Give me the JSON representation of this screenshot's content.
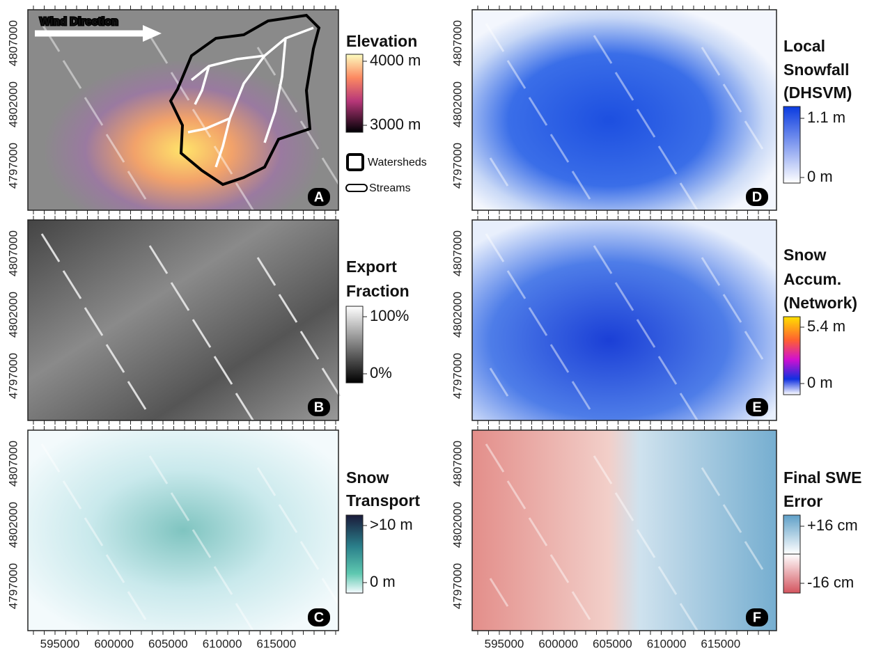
{
  "x_ticks": [
    "595000",
    "600000",
    "605000",
    "610000",
    "615000"
  ],
  "y_ticks": [
    "4807000",
    "4802000",
    "4797000"
  ],
  "annotations": {
    "wind": "Wind Direction",
    "watersheds": "Watersheds",
    "streams": "Streams"
  },
  "panels": [
    {
      "letter": "A",
      "legend_title": [
        "Elevation"
      ],
      "legend_labels": [
        "4000 m",
        "3000 m"
      ]
    },
    {
      "letter": "B",
      "legend_title": [
        "Export",
        "Fraction"
      ],
      "legend_labels": [
        "100%",
        "0%"
      ]
    },
    {
      "letter": "C",
      "legend_title": [
        "Snow",
        "Transport"
      ],
      "legend_labels": [
        ">10 m",
        "0 m"
      ]
    },
    {
      "letter": "D",
      "legend_title": [
        "Local",
        "Snowfall",
        "(DHSVM)"
      ],
      "legend_labels": [
        "1.1 m",
        "0 m"
      ]
    },
    {
      "letter": "E",
      "legend_title": [
        "Snow",
        "Accum.",
        "(Network)"
      ],
      "legend_labels": [
        "5.4 m",
        "0 m"
      ]
    },
    {
      "letter": "F",
      "legend_title": [
        "Final SWE",
        "Error"
      ],
      "legend_labels": [
        "+16 cm",
        "-16 cm"
      ]
    }
  ]
}
